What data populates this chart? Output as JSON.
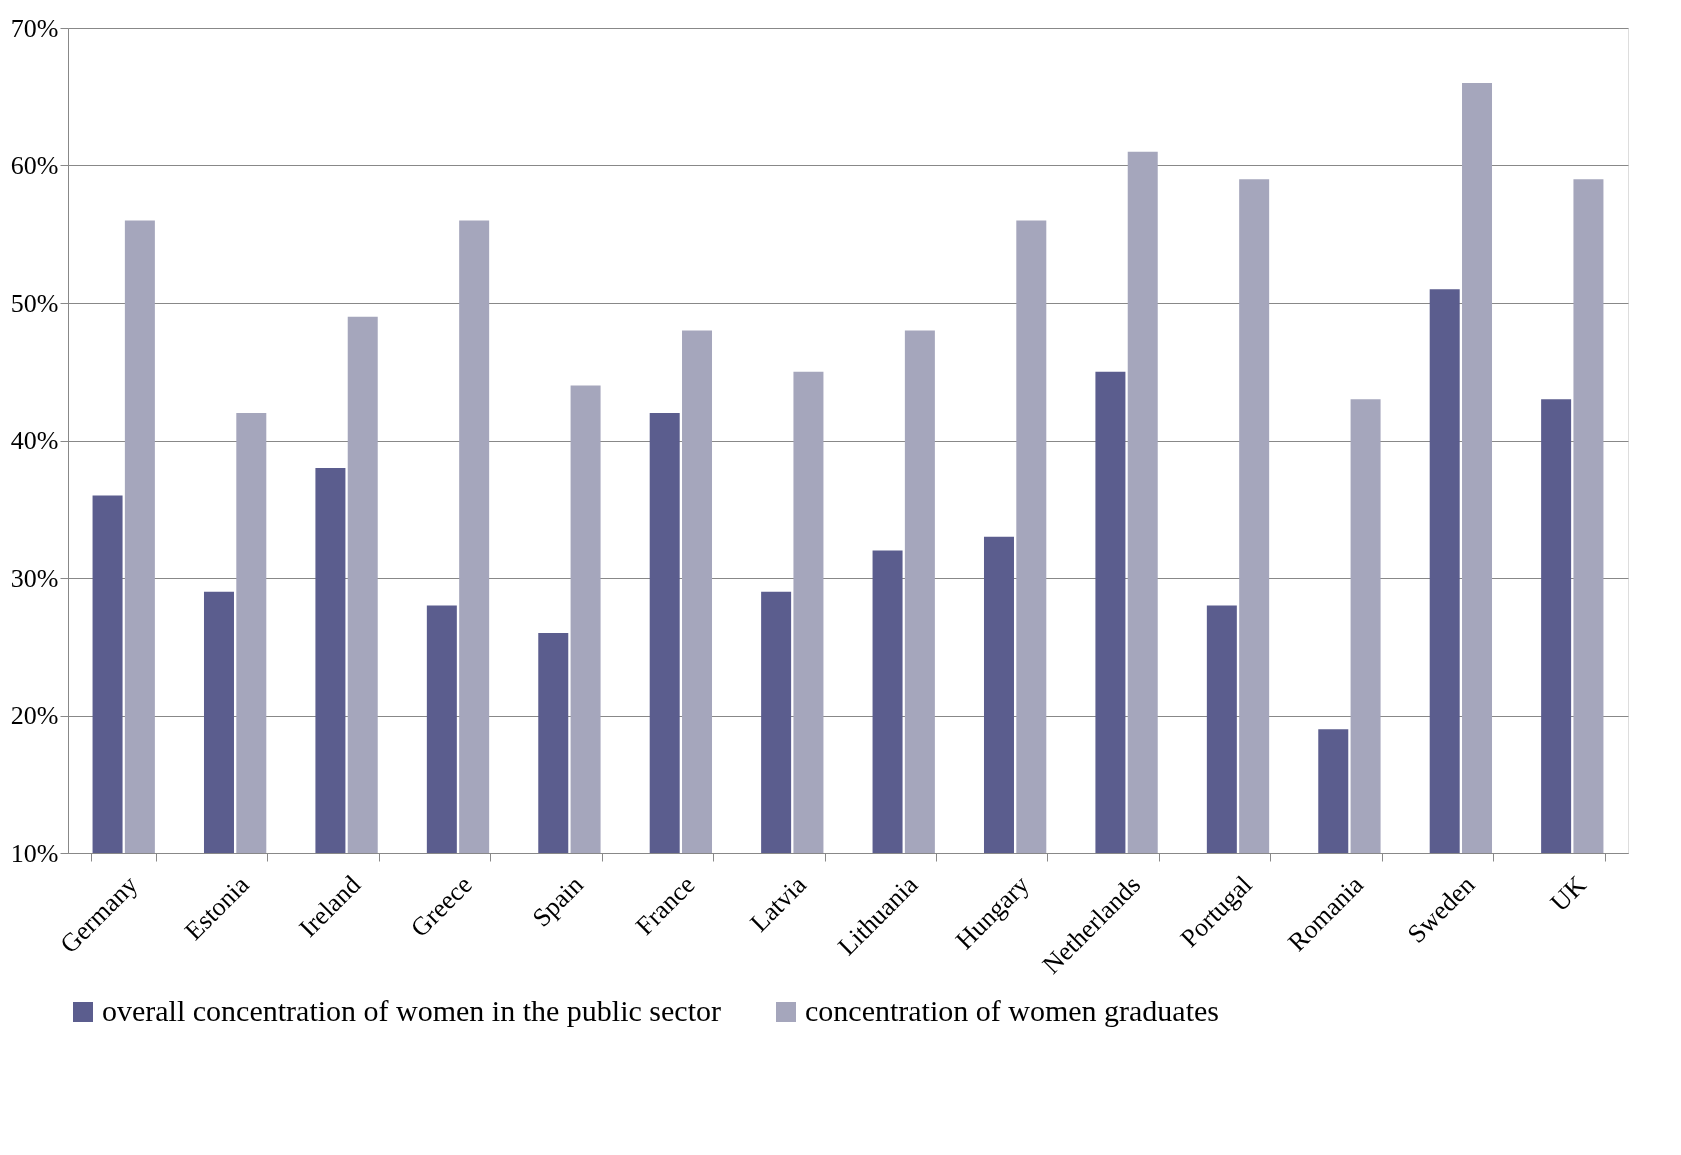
{
  "chart_data": {
    "type": "bar",
    "categories": [
      "Germany",
      "Estonia",
      "Ireland",
      "Greece",
      "Spain",
      "France",
      "Latvia",
      "Lithuania",
      "Hungary",
      "Netherlands",
      "Portugal",
      "Romania",
      "Sweden",
      "UK"
    ],
    "series": [
      {
        "name": "overall concentration of women in the public sector",
        "color": "#5b5d8e",
        "values": [
          36,
          29,
          38,
          28,
          26,
          42,
          29,
          32,
          33,
          45,
          28,
          19,
          51,
          43
        ]
      },
      {
        "name": "concentration of women graduates",
        "color": "#a5a6bc",
        "values": [
          56,
          42,
          49,
          56,
          44,
          48,
          45,
          48,
          56,
          61,
          59,
          43,
          66,
          59
        ]
      }
    ],
    "ylim": [
      10,
      70
    ],
    "yticks": [
      {
        "value": 10,
        "label": "10%"
      },
      {
        "value": 20,
        "label": "20%"
      },
      {
        "value": 30,
        "label": "30%"
      },
      {
        "value": 40,
        "label": "40%"
      },
      {
        "value": 50,
        "label": "50%"
      },
      {
        "value": 60,
        "label": "60%"
      },
      {
        "value": 70,
        "label": "70%"
      }
    ],
    "grid": "y",
    "legend": "bottom"
  }
}
